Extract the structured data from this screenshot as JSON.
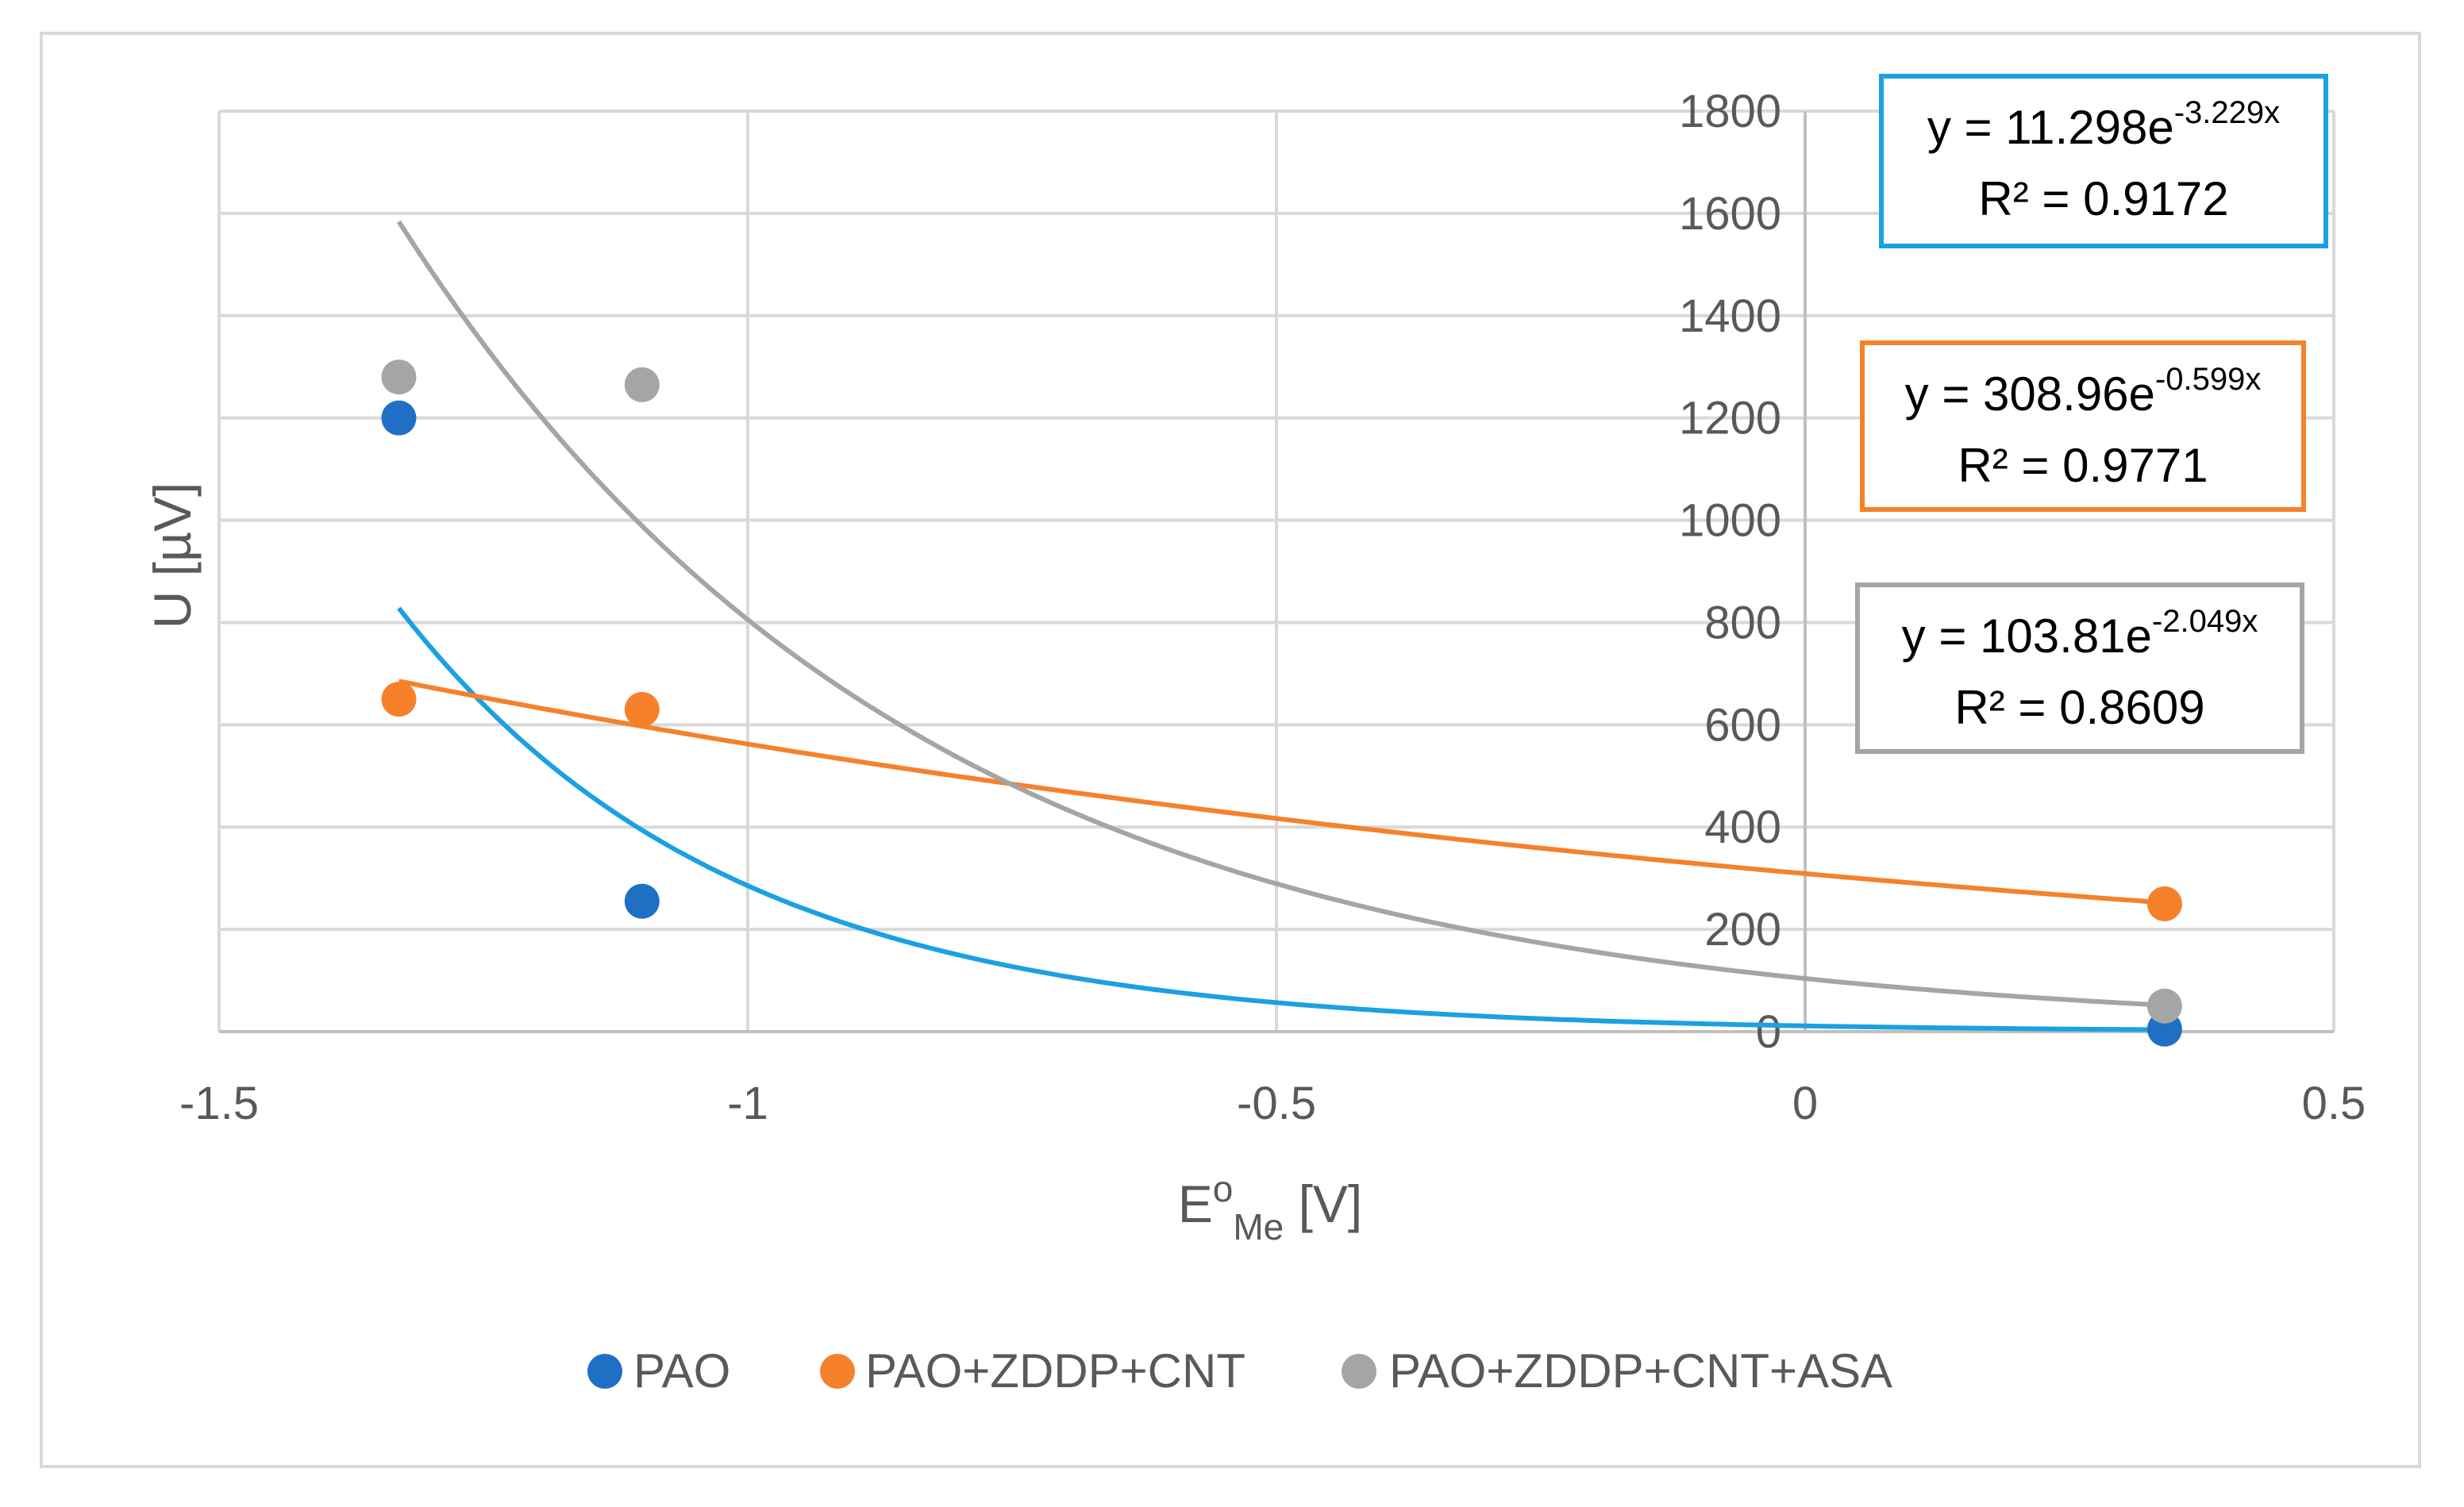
{
  "chart_data": {
    "type": "scatter",
    "title": "",
    "xlabel": {
      "main": "E",
      "sup": "o",
      "sub": "Me",
      "unit": " [V]"
    },
    "ylabel": "U [µV]",
    "xlim": [
      -1.5,
      0.5
    ],
    "ylim": [
      0,
      1800
    ],
    "xticks": [
      -1.5,
      -1,
      -0.5,
      0,
      0.5
    ],
    "xtick_labels": [
      "-1.5",
      "-1",
      "-0.5",
      "0",
      "0.5"
    ],
    "yticks": [
      0,
      200,
      400,
      600,
      800,
      1000,
      1200,
      1400,
      1600,
      1800
    ],
    "ytick_labels": [
      "0",
      "200",
      "400",
      "600",
      "800",
      "1000",
      "1200",
      "1400",
      "1600",
      "1800"
    ],
    "grid": true,
    "legend_position": "bottom",
    "series": [
      {
        "name": "PAO",
        "color": "#1f6fc5",
        "trend_color": "#1ba1e2",
        "x": [
          -1.33,
          -1.1,
          0.34
        ],
        "y": [
          1200,
          255,
          5
        ],
        "trendline": {
          "type": "exponential",
          "a": 11.298,
          "b": -3.229,
          "x_range": [
            -1.33,
            0.34
          ]
        },
        "equation": {
          "prefix": "y = 11.298e",
          "exp": "-3.229x",
          "r2": "R² = 0.9172"
        },
        "box_color": "#1ba1e2"
      },
      {
        "name": "PAO+ZDDP+CNT",
        "color": "#f5822a",
        "trend_color": "#f5822a",
        "x": [
          -1.33,
          -1.1,
          0.34
        ],
        "y": [
          650,
          630,
          250
        ],
        "trendline": {
          "type": "exponential",
          "a": 308.96,
          "b": -0.599,
          "x_range": [
            -1.33,
            0.34
          ]
        },
        "equation": {
          "prefix": "y = 308.96e",
          "exp": "-0.599x",
          "r2": "R² = 0.9771"
        },
        "box_color": "#f5822a"
      },
      {
        "name": "PAO+ZDDP+CNT+ASA",
        "color": "#a5a5a5",
        "trend_color": "#a5a5a5",
        "x": [
          -1.33,
          -1.1,
          0.34
        ],
        "y": [
          1280,
          1265,
          50
        ],
        "trendline": {
          "type": "exponential",
          "a": 103.81,
          "b": -2.049,
          "x_range": [
            -1.33,
            0.34
          ]
        },
        "equation": {
          "prefix": "y = 103.81e",
          "exp": "-2.049x",
          "r2": "R² = 0.8609"
        },
        "box_color": "#a5a5a5"
      }
    ]
  }
}
